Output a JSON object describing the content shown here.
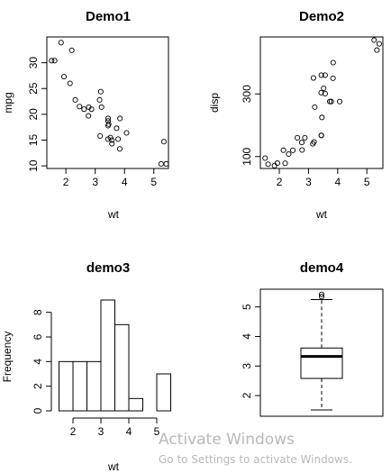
{
  "chart_data": [
    {
      "type": "scatter",
      "title": "Demo1",
      "xlabel": "wt",
      "ylabel": "mpg",
      "xlim": [
        1.35,
        5.5
      ],
      "ylim": [
        9.5,
        35
      ],
      "xticks": [
        2,
        3,
        4,
        5
      ],
      "yticks": [
        10,
        15,
        20,
        25,
        30
      ],
      "x": [
        2.62,
        2.875,
        2.32,
        3.215,
        3.44,
        3.46,
        3.57,
        3.19,
        3.15,
        3.44,
        3.44,
        4.07,
        3.73,
        3.78,
        5.25,
        5.424,
        5.345,
        2.2,
        1.615,
        1.835,
        2.465,
        3.52,
        3.435,
        3.84,
        3.845,
        1.935,
        2.14,
        1.513,
        3.17,
        2.77,
        3.57,
        2.78
      ],
      "y": [
        21.0,
        21.0,
        22.8,
        21.4,
        18.7,
        18.1,
        14.3,
        24.4,
        22.8,
        19.2,
        17.8,
        16.4,
        17.3,
        15.2,
        10.4,
        10.4,
        14.7,
        32.4,
        30.4,
        33.9,
        21.5,
        15.5,
        15.2,
        13.3,
        19.2,
        27.3,
        26.0,
        30.4,
        15.8,
        19.7,
        15.0,
        21.4
      ]
    },
    {
      "type": "scatter",
      "title": "Demo2",
      "xlabel": "wt",
      "ylabel": "disp",
      "xlim": [
        1.35,
        5.55
      ],
      "ylim": [
        62,
        482
      ],
      "xticks": [
        2,
        3,
        4,
        5
      ],
      "yticks": [
        100,
        300
      ],
      "x": [
        2.62,
        2.875,
        2.32,
        3.215,
        3.44,
        3.46,
        3.57,
        3.19,
        3.15,
        3.44,
        3.44,
        4.07,
        3.73,
        3.78,
        5.25,
        5.424,
        5.345,
        2.2,
        1.615,
        1.835,
        2.465,
        3.52,
        3.435,
        3.84,
        3.845,
        1.935,
        2.14,
        1.513,
        3.17,
        2.77,
        3.57,
        2.78
      ],
      "y": [
        160,
        160,
        108,
        258,
        360,
        225,
        360,
        146.7,
        140.8,
        167.6,
        167.6,
        275.8,
        275.8,
        275.8,
        472,
        460,
        440,
        78.7,
        75.7,
        71.1,
        120.1,
        318,
        304,
        350,
        400,
        79,
        120.3,
        95.1,
        351,
        145,
        301,
        121
      ]
    },
    {
      "type": "bar",
      "subtype": "histogram",
      "title": "demo3",
      "xlabel": "wt",
      "ylabel": "Frequency",
      "bins": [
        [
          1.5,
          2.0
        ],
        [
          2.0,
          2.5
        ],
        [
          2.5,
          3.0
        ],
        [
          3.0,
          3.5
        ],
        [
          3.5,
          4.0
        ],
        [
          4.0,
          4.5
        ],
        [
          4.5,
          5.0
        ],
        [
          5.0,
          5.5
        ]
      ],
      "values": [
        4,
        4,
        4,
        9,
        7,
        1,
        0,
        3
      ],
      "xticks": [
        2,
        3,
        4,
        5
      ],
      "yticks": [
        0,
        2,
        4,
        6,
        8
      ],
      "xlim": [
        1.5,
        5.5
      ],
      "ylim": [
        0,
        9
      ]
    },
    {
      "type": "boxplot",
      "title": "demo4",
      "yticks": [
        2,
        3,
        4,
        5
      ],
      "ylim": [
        1.3,
        5.6
      ],
      "min": 1.513,
      "q1": 2.58,
      "median": 3.325,
      "q3": 3.61,
      "max": 5.25,
      "outliers": [
        5.424,
        5.345
      ]
    }
  ],
  "watermark": {
    "title": "Activate Windows",
    "subtitle": "Go to Settings to activate Windows."
  }
}
